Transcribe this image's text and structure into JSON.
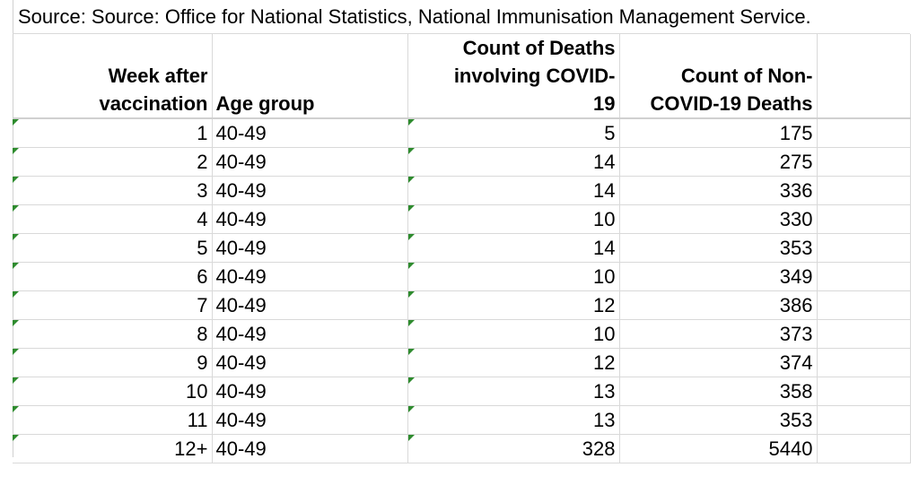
{
  "source": "Source: Source: Office for National Statistics, National Immunisation Management Service.",
  "headers": {
    "week": [
      "Week after",
      "vaccination"
    ],
    "age": [
      "Age group"
    ],
    "covid": [
      "Count of Deaths",
      "involving COVID-",
      "19"
    ],
    "noncovid": [
      "Count of Non-",
      "COVID-19 Deaths"
    ]
  },
  "rows": [
    {
      "week": "1",
      "age": "40-49",
      "covid": "5",
      "noncovid": "175"
    },
    {
      "week": "2",
      "age": "40-49",
      "covid": "14",
      "noncovid": "275"
    },
    {
      "week": "3",
      "age": "40-49",
      "covid": "14",
      "noncovid": "336"
    },
    {
      "week": "4",
      "age": "40-49",
      "covid": "10",
      "noncovid": "330"
    },
    {
      "week": "5",
      "age": "40-49",
      "covid": "14",
      "noncovid": "353"
    },
    {
      "week": "6",
      "age": "40-49",
      "covid": "10",
      "noncovid": "349"
    },
    {
      "week": "7",
      "age": "40-49",
      "covid": "12",
      "noncovid": "386"
    },
    {
      "week": "8",
      "age": "40-49",
      "covid": "10",
      "noncovid": "373"
    },
    {
      "week": "9",
      "age": "40-49",
      "covid": "12",
      "noncovid": "374"
    },
    {
      "week": "10",
      "age": "40-49",
      "covid": "13",
      "noncovid": "358"
    },
    {
      "week": "11",
      "age": "40-49",
      "covid": "13",
      "noncovid": "353"
    },
    {
      "week": "12+",
      "age": "40-49",
      "covid": "328",
      "noncovid": "5440"
    }
  ],
  "colors": {
    "gridline": "#d9d9d9",
    "error_indicator": "#2e8b2e"
  }
}
